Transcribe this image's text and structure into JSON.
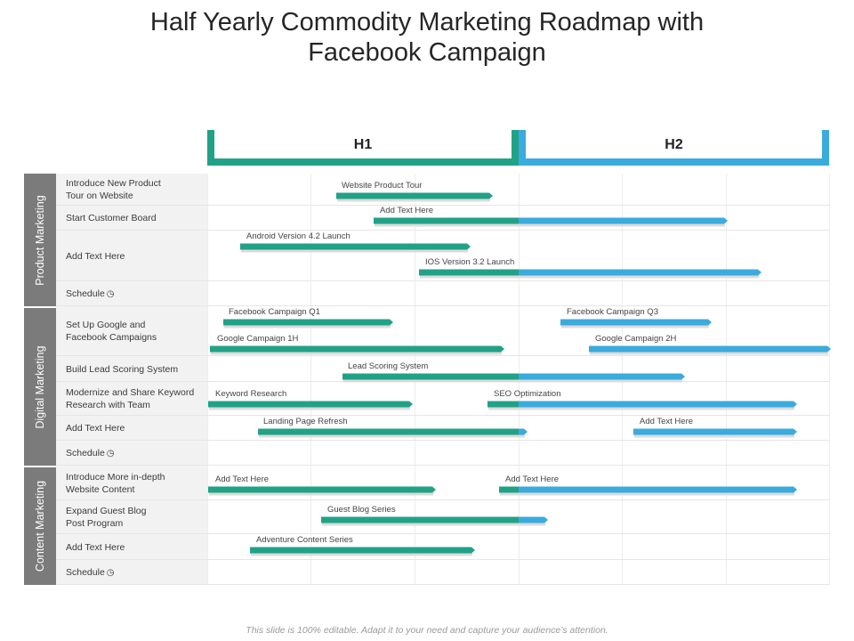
{
  "title_line1": "Half Yearly Commodity Marketing Roadmap with",
  "title_line2": "Facebook Campaign",
  "headers": {
    "h1": "H1",
    "h2": "H2"
  },
  "colors": {
    "h1": "#21a287",
    "h2": "#3aabdc",
    "section": "#7b7b7b",
    "label_bg": "#f2f2f2"
  },
  "sections": [
    {
      "label": "Product Marketing"
    },
    {
      "label": "Digital Marketing"
    },
    {
      "label": "Content Marketing"
    }
  ],
  "rows": [
    {
      "label_lines": [
        "Introduce New Product",
        "Tour on Website"
      ]
    },
    {
      "label_lines": [
        "Start Customer Board"
      ]
    },
    {
      "label_lines": [
        "Add Text Here"
      ]
    },
    {
      "label_lines": [
        "Schedule"
      ],
      "icon": "clock-icon"
    },
    {
      "label_lines": [
        "Set Up Google and",
        "Facebook Campaigns"
      ]
    },
    {
      "label_lines": [
        "Build Lead Scoring System"
      ]
    },
    {
      "label_lines": [
        "Modernize and Share Keyword",
        "Research with Team"
      ]
    },
    {
      "label_lines": [
        "Add Text Here"
      ]
    },
    {
      "label_lines": [
        "Schedule"
      ],
      "icon": "clock-icon"
    },
    {
      "label_lines": [
        "Introduce More in-depth",
        "Website Content"
      ]
    },
    {
      "label_lines": [
        "Expand Guest Blog",
        "Post Program"
      ]
    },
    {
      "label_lines": [
        "Add Text Here"
      ]
    },
    {
      "label_lines": [
        "Schedule"
      ],
      "icon": "clock-icon"
    }
  ],
  "tasks": [
    "Website Product Tour",
    "Add Text Here",
    "Android Version 4.2 Launch",
    "IOS Version 3.2 Launch",
    "Facebook Campaign Q1",
    "Facebook Campaign Q3",
    "Google Campaign 1H",
    "Google Campaign 2H",
    "Lead Scoring System",
    "Keyword Research",
    "SEO Optimization",
    "Landing Page Refresh",
    "Add Text Here",
    "Add Text Here",
    "Add Text Here",
    "Guest Blog Series",
    "Adventure Content Series"
  ],
  "footer": "This slide is 100% editable. Adapt it to your need and capture your audience’s attention."
}
